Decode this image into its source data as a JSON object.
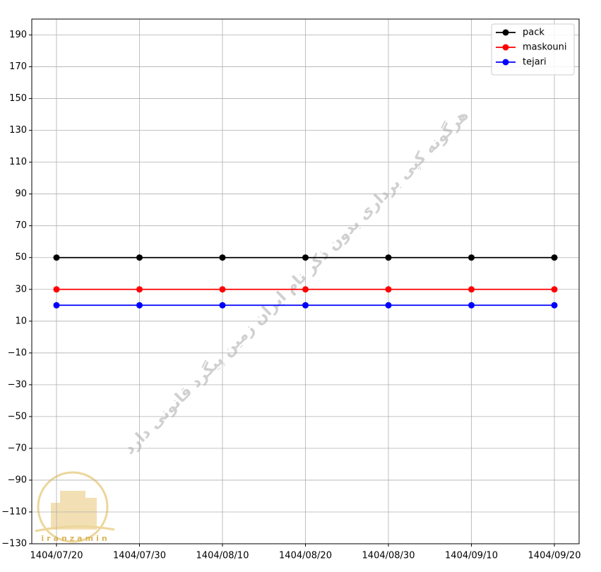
{
  "chart_data": {
    "type": "line",
    "categories": [
      "1404/07/20",
      "1404/07/30",
      "1404/08/10",
      "1404/08/20",
      "1404/08/30",
      "1404/09/10",
      "1404/09/20"
    ],
    "series": [
      {
        "name": "pack",
        "color": "#000000",
        "values": [
          50,
          50,
          50,
          50,
          50,
          50,
          50
        ]
      },
      {
        "name": "maskouni",
        "color": "#ff0000",
        "values": [
          30,
          30,
          30,
          30,
          30,
          30,
          30
        ]
      },
      {
        "name": "tejari",
        "color": "#0000ff",
        "values": [
          20,
          20,
          20,
          20,
          20,
          20,
          20
        ]
      }
    ],
    "ylim": [
      -130,
      200
    ],
    "yticks": [
      {
        "value": -130,
        "label": "−130"
      },
      {
        "value": -110,
        "label": "−110"
      },
      {
        "value": -90,
        "label": "−90"
      },
      {
        "value": -70,
        "label": "−70"
      },
      {
        "value": -50,
        "label": "−50"
      },
      {
        "value": -30,
        "label": "−30"
      },
      {
        "value": -10,
        "label": "−10"
      },
      10,
      30,
      50,
      70,
      90,
      110,
      130,
      150,
      170,
      190
    ],
    "grid": true,
    "legend": "upper right",
    "watermark": "هرگونه کپی برداری بدون ذکر نام ایران زمین پیگرد قانونی دارد",
    "logo_text": "iranzamin"
  }
}
